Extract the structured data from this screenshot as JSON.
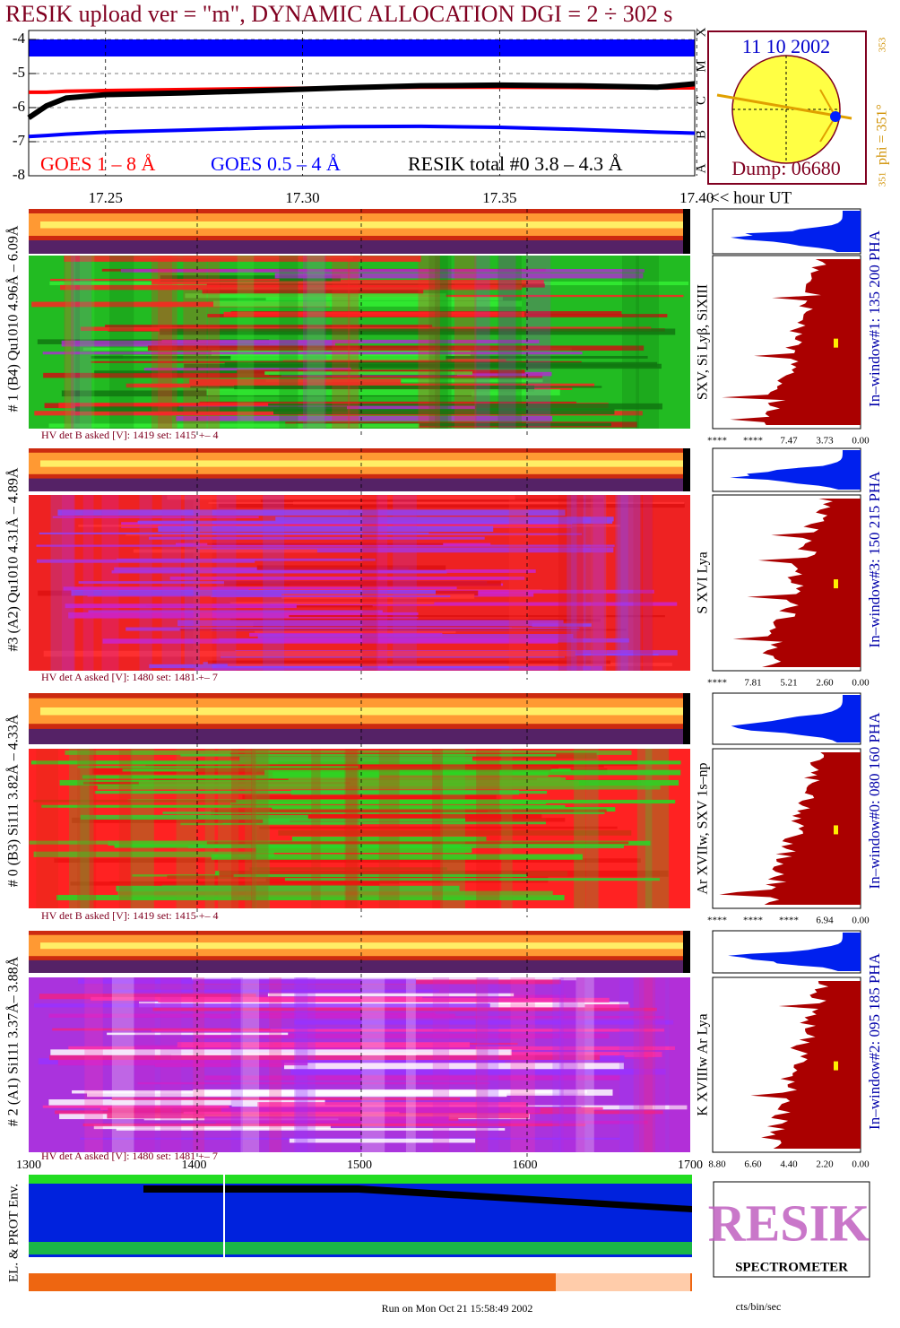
{
  "title": "RESIK upload ver = \"m\", DYNAMIC ALLOCATION  DGI =   2 ÷ 302 s",
  "chart_data": {
    "type": "line",
    "x": [
      17.2305,
      17.235,
      17.24,
      17.25,
      17.27,
      17.29,
      17.31,
      17.33,
      17.35,
      17.37,
      17.39,
      17.3995
    ],
    "xlim": [
      17.2305,
      17.3995
    ],
    "xticks": [
      17.25,
      {
        "value": 17.3,
        "label": "17.30"
      },
      17.35,
      {
        "value": 17.4,
        "label": "17.40"
      }
    ],
    "xlabel": "<< hour UT",
    "ylim": [
      -8,
      -4
    ],
    "yticks": [
      -4,
      -5,
      -6,
      -7,
      -8
    ],
    "class_labels": [
      "X",
      "M",
      "C",
      "B",
      "A"
    ],
    "grid": true,
    "series": [
      {
        "name": "GOES 1 – 8 Å",
        "color": "#ff0000",
        "values": [
          -5.55,
          -5.55,
          -5.52,
          -5.5,
          -5.47,
          -5.44,
          -5.42,
          -5.4,
          -5.4,
          -5.41,
          -5.42,
          -5.42
        ]
      },
      {
        "name": "GOES 0.5 – 4 Å",
        "color": "#0000ff",
        "values": [
          -6.85,
          -6.82,
          -6.78,
          -6.72,
          -6.66,
          -6.6,
          -6.56,
          -6.55,
          -6.58,
          -6.64,
          -6.72,
          -6.75
        ]
      },
      {
        "name": "RESIK total #0  3.8 – 4.3 Å",
        "color": "#000000",
        "values": [
          -6.3,
          -5.95,
          -5.72,
          -5.62,
          -5.57,
          -5.5,
          -5.42,
          -5.36,
          -5.34,
          -5.36,
          -5.4,
          -5.3
        ]
      }
    ]
  },
  "sun": {
    "date": "11 10 2002",
    "phi": "phi = 351°",
    "phi_sup": "353",
    "phi_min": "351",
    "dump": "Dump: 06680"
  },
  "panels": [
    {
      "label": "# 1 (B4) Qu1010 4.96Å – 6.09Å",
      "lines": "SXV, Si Lyβ, SiXIII",
      "window": "In–window#1:  135 200 PHA",
      "hv": "HV det B asked [V]:  1419 set:  1415 +–   4",
      "scale": [
        "****",
        "****",
        "7.47",
        "3.73",
        "0.00"
      ]
    },
    {
      "label": "#3 (A2) Qu1010  4.31Å – 4.89Å",
      "lines": "S XVI Lya",
      "window": "In–window#3:  150 215 PHA",
      "hv": "HV det A asked [V]:  1480 set:  1481 +–   7",
      "scale": [
        "****",
        "7.81",
        "5.21",
        "2.60",
        "0.00"
      ]
    },
    {
      "label": "# 0 (B3) Si111  3.82Å – 4.33Å",
      "lines": "Ar XVIIw,  SXV 1s–np",
      "window": "In–window#0:  080 160 PHA",
      "hv": "HV det B asked [V]:  1419 set:  1415 +–   4",
      "scale": [
        "****",
        "****",
        "****",
        "6.94",
        "0.00"
      ]
    },
    {
      "label": "# 2 (A1) Si111  3.37Å– 3.88Å",
      "lines": "K XVIIIw  Ar Lya",
      "window": "In–window#2:  095 185 PHA",
      "hv": "HV det A asked [V]:  1480 set:  1481 +–   7",
      "scale": [
        "8.80",
        "6.60",
        "4.40",
        "2.20",
        "0.00"
      ]
    }
  ],
  "scale_unit": "cts/bin/sec",
  "env": {
    "label": "EL. & PROT Env.",
    "ticks": [
      "1300",
      "1400",
      "1500",
      "1600",
      "1700"
    ]
  },
  "logo": {
    "name": "RESIK",
    "text": "SPECTROMETER"
  },
  "footer": "Run on Mon Oct 21 15:58:49 2002"
}
